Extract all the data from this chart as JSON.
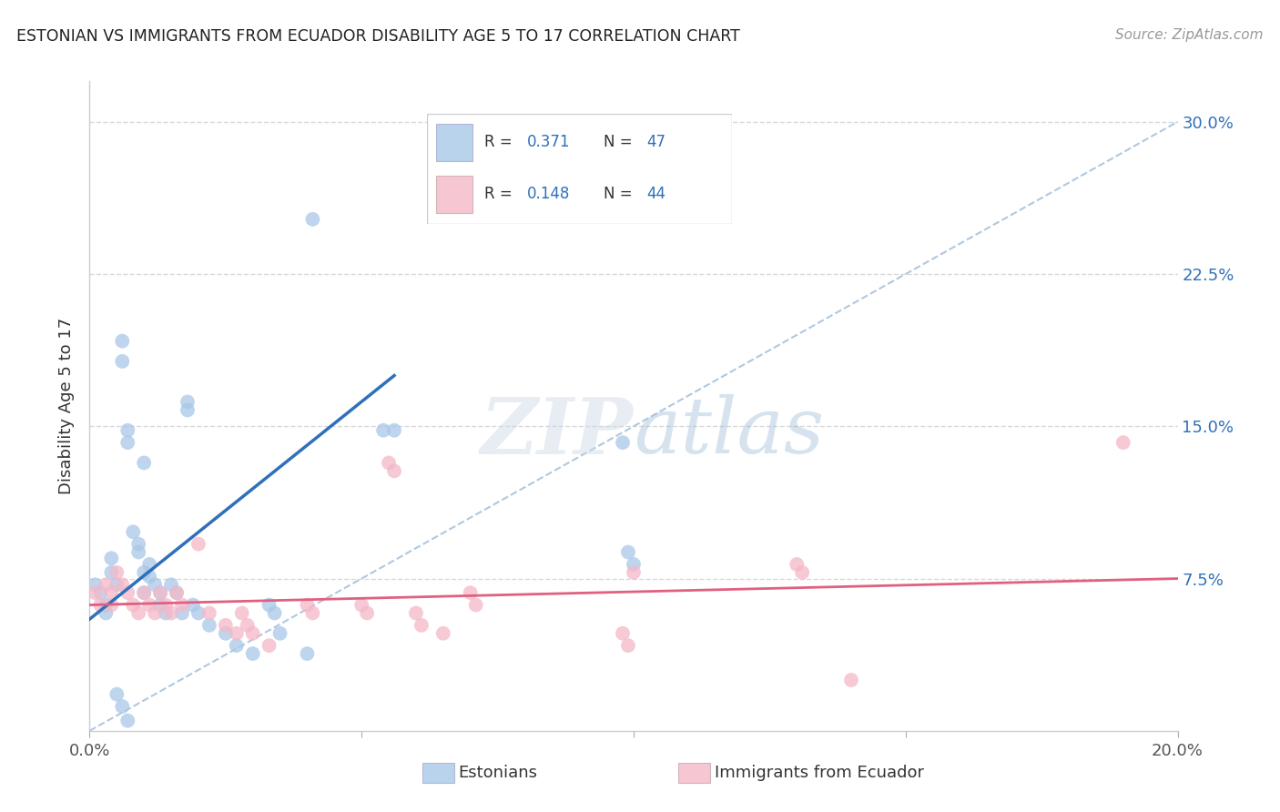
{
  "title": "ESTONIAN VS IMMIGRANTS FROM ECUADOR DISABILITY AGE 5 TO 17 CORRELATION CHART",
  "source": "Source: ZipAtlas.com",
  "ylabel": "Disability Age 5 to 17",
  "xlim": [
    0.0,
    0.2
  ],
  "ylim": [
    0.0,
    0.32
  ],
  "yticks": [
    0.075,
    0.15,
    0.225,
    0.3
  ],
  "ytick_labels": [
    "7.5%",
    "15.0%",
    "22.5%",
    "30.0%"
  ],
  "xticks": [
    0.0,
    0.05,
    0.1,
    0.15,
    0.2
  ],
  "blue_color": "#a8c8e8",
  "pink_color": "#f4b8c8",
  "blue_line_color": "#3070b8",
  "pink_line_color": "#e06080",
  "dashed_line_color": "#b0c8e0",
  "blue_scatter": [
    [
      0.001,
      0.072
    ],
    [
      0.002,
      0.068
    ],
    [
      0.003,
      0.062
    ],
    [
      0.003,
      0.058
    ],
    [
      0.004,
      0.085
    ],
    [
      0.004,
      0.078
    ],
    [
      0.005,
      0.072
    ],
    [
      0.006,
      0.192
    ],
    [
      0.006,
      0.182
    ],
    [
      0.007,
      0.148
    ],
    [
      0.007,
      0.142
    ],
    [
      0.008,
      0.098
    ],
    [
      0.009,
      0.088
    ],
    [
      0.009,
      0.092
    ],
    [
      0.01,
      0.132
    ],
    [
      0.01,
      0.078
    ],
    [
      0.01,
      0.068
    ],
    [
      0.011,
      0.082
    ],
    [
      0.011,
      0.076
    ],
    [
      0.012,
      0.072
    ],
    [
      0.013,
      0.068
    ],
    [
      0.013,
      0.062
    ],
    [
      0.014,
      0.058
    ],
    [
      0.015,
      0.072
    ],
    [
      0.016,
      0.068
    ],
    [
      0.017,
      0.058
    ],
    [
      0.018,
      0.162
    ],
    [
      0.018,
      0.158
    ],
    [
      0.019,
      0.062
    ],
    [
      0.02,
      0.058
    ],
    [
      0.022,
      0.052
    ],
    [
      0.025,
      0.048
    ],
    [
      0.027,
      0.042
    ],
    [
      0.03,
      0.038
    ],
    [
      0.033,
      0.062
    ],
    [
      0.034,
      0.058
    ],
    [
      0.035,
      0.048
    ],
    [
      0.04,
      0.038
    ],
    [
      0.041,
      0.252
    ],
    [
      0.054,
      0.148
    ],
    [
      0.056,
      0.148
    ],
    [
      0.098,
      0.142
    ],
    [
      0.099,
      0.088
    ],
    [
      0.1,
      0.082
    ],
    [
      0.005,
      0.018
    ],
    [
      0.006,
      0.012
    ],
    [
      0.007,
      0.005
    ]
  ],
  "pink_scatter": [
    [
      0.001,
      0.068
    ],
    [
      0.002,
      0.062
    ],
    [
      0.003,
      0.072
    ],
    [
      0.004,
      0.068
    ],
    [
      0.004,
      0.062
    ],
    [
      0.005,
      0.078
    ],
    [
      0.006,
      0.072
    ],
    [
      0.007,
      0.068
    ],
    [
      0.008,
      0.062
    ],
    [
      0.009,
      0.058
    ],
    [
      0.01,
      0.068
    ],
    [
      0.011,
      0.062
    ],
    [
      0.012,
      0.058
    ],
    [
      0.013,
      0.068
    ],
    [
      0.014,
      0.062
    ],
    [
      0.015,
      0.058
    ],
    [
      0.016,
      0.068
    ],
    [
      0.017,
      0.062
    ],
    [
      0.02,
      0.092
    ],
    [
      0.022,
      0.058
    ],
    [
      0.025,
      0.052
    ],
    [
      0.027,
      0.048
    ],
    [
      0.028,
      0.058
    ],
    [
      0.029,
      0.052
    ],
    [
      0.03,
      0.048
    ],
    [
      0.033,
      0.042
    ],
    [
      0.04,
      0.062
    ],
    [
      0.041,
      0.058
    ],
    [
      0.05,
      0.062
    ],
    [
      0.051,
      0.058
    ],
    [
      0.055,
      0.132
    ],
    [
      0.056,
      0.128
    ],
    [
      0.06,
      0.058
    ],
    [
      0.061,
      0.052
    ],
    [
      0.065,
      0.048
    ],
    [
      0.07,
      0.068
    ],
    [
      0.071,
      0.062
    ],
    [
      0.098,
      0.048
    ],
    [
      0.099,
      0.042
    ],
    [
      0.1,
      0.078
    ],
    [
      0.13,
      0.082
    ],
    [
      0.131,
      0.078
    ],
    [
      0.19,
      0.142
    ],
    [
      0.14,
      0.025
    ]
  ],
  "blue_line": [
    [
      0.0,
      0.055
    ],
    [
      0.056,
      0.175
    ]
  ],
  "pink_line": [
    [
      0.0,
      0.062
    ],
    [
      0.2,
      0.075
    ]
  ],
  "dashed_line": [
    [
      0.0,
      0.0
    ],
    [
      0.2,
      0.3
    ]
  ],
  "watermark": "ZIPatlas",
  "background_color": "#ffffff",
  "grid_color": "#d8d8d8"
}
